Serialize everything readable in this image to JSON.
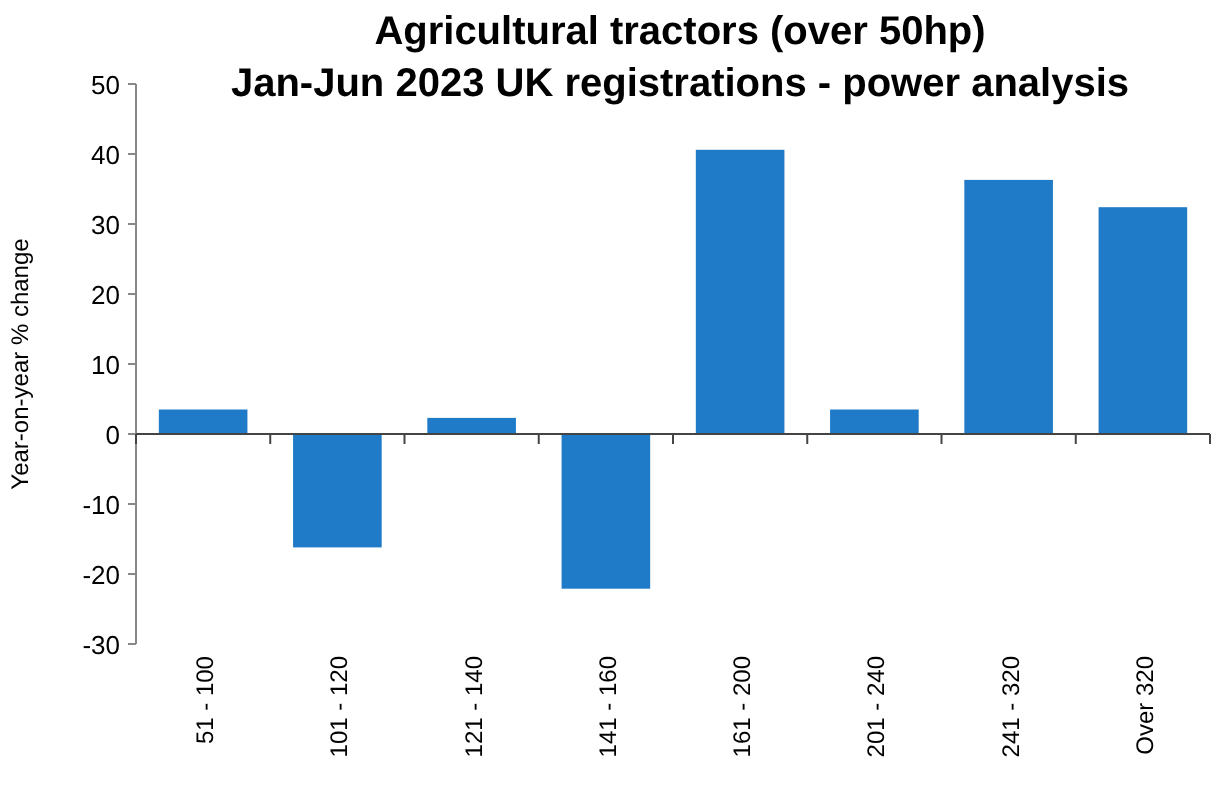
{
  "chart_data": {
    "type": "bar",
    "title": "Agricultural tractors (over 50hp)",
    "subtitle": "Jan-Jun 2023 UK registrations - power analysis",
    "ylabel": "Year-on-year  % change",
    "categories": [
      "51 - 100",
      "101 - 120",
      "121 - 140",
      "141 - 160",
      "161 - 200",
      "201 - 240",
      "241 - 320",
      "Over 320"
    ],
    "values": [
      3.5,
      -16.2,
      2.3,
      -22.1,
      40.6,
      3.5,
      36.3,
      32.4
    ],
    "color": "#1f7bc8",
    "ylim": [
      -30,
      50
    ],
    "yticks": [
      -30,
      -20,
      -10,
      0,
      10,
      20,
      30,
      40,
      50
    ]
  }
}
